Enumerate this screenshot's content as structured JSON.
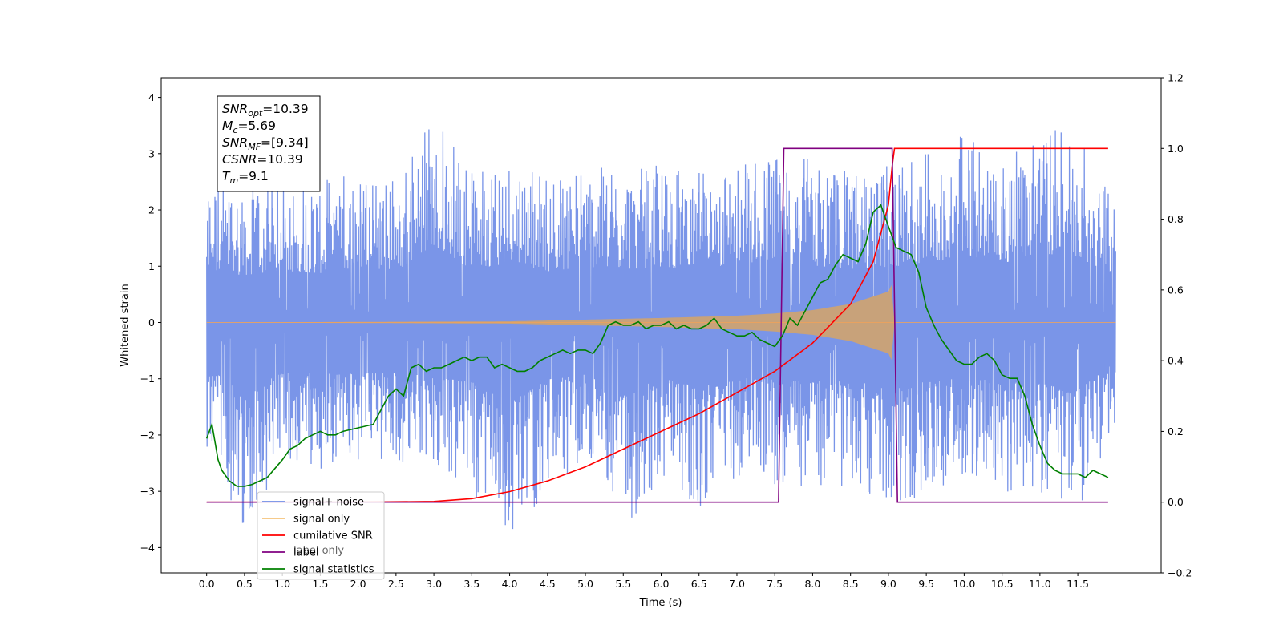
{
  "chart_data": {
    "type": "line",
    "xlabel": "Time (s)",
    "ylabel_left": "Whitened strain",
    "xlim": [
      -0.6,
      12.6
    ],
    "ylim_left": [
      -4.45,
      4.35
    ],
    "ylim_right": [
      -0.2,
      1.2
    ],
    "x_ticks": [
      0.0,
      0.5,
      1.0,
      1.5,
      2.0,
      2.5,
      3.0,
      3.5,
      4.0,
      4.5,
      5.0,
      5.5,
      6.0,
      6.5,
      7.0,
      7.5,
      8.0,
      8.5,
      9.0,
      9.5,
      10.0,
      10.5,
      11.0,
      11.5
    ],
    "x_tick_labels": [
      "0.0",
      "0.5",
      "1.0",
      "1.5",
      "2.0",
      "2.5",
      "3.0",
      "3.5",
      "4.0",
      "4.5",
      "5.0",
      "5.5",
      "6.0",
      "6.5",
      "7.0",
      "7.5",
      "8.0",
      "8.5",
      "9.0",
      "9.5",
      "10.0",
      "10.5",
      "11.0",
      "11.5"
    ],
    "y_left_ticks": [
      -4,
      -3,
      -2,
      -1,
      0,
      1,
      2,
      3,
      4
    ],
    "y_left_tick_labels": [
      "−4",
      "−3",
      "−2",
      "−1",
      "0",
      "1",
      "2",
      "3",
      "4"
    ],
    "y_right_ticks": [
      -0.2,
      0.0,
      0.2,
      0.4,
      0.6,
      0.8,
      1.0,
      1.2
    ],
    "y_right_tick_labels": [
      "−0.2",
      "0.0",
      "0.2",
      "0.4",
      "0.6",
      "0.8",
      "1.0",
      "1.2"
    ],
    "legend_position": "lower-left",
    "annotation": [
      {
        "base": "SNR",
        "sub": "opt",
        "value": "=10.39"
      },
      {
        "base": "M",
        "sub": "c",
        "value": "=5.69"
      },
      {
        "base": "SNR",
        "sub": "MF",
        "value": "=[9.34]"
      },
      {
        "base": "CSNR",
        "sub": "",
        "value": "=10.39"
      },
      {
        "base": "T",
        "sub": "m",
        "value": "=9.1"
      }
    ],
    "series": [
      {
        "name": "signal+ noise",
        "axis": "left",
        "color": "#6f8ce6",
        "envelope": {
          "x": [
            0,
            0.5,
            1,
            1.5,
            2,
            2.5,
            3,
            3.5,
            4,
            4.5,
            5,
            5.5,
            6,
            6.5,
            7,
            7.5,
            8,
            8.5,
            9,
            9.5,
            10,
            10.5,
            11,
            11.5,
            12
          ],
          "upper": [
            2.6,
            2.4,
            2.6,
            2.5,
            2.8,
            2.6,
            3.8,
            2.7,
            3.0,
            2.6,
            2.8,
            2.7,
            2.8,
            2.7,
            2.9,
            3.0,
            2.9,
            2.7,
            2.8,
            3.0,
            3.4,
            3.0,
            3.5,
            3.3,
            2.4
          ],
          "lower": [
            -2.2,
            -3.7,
            -2.5,
            -2.6,
            -2.6,
            -2.5,
            -2.8,
            -3.0,
            -4.1,
            -2.9,
            -2.6,
            -3.7,
            -2.8,
            -3.3,
            -2.8,
            -2.9,
            -3.0,
            -2.9,
            -3.4,
            -3.0,
            -2.8,
            -3.0,
            -3.1,
            -3.4,
            -2.0
          ]
        }
      },
      {
        "name": "signal only",
        "axis": "left",
        "color": "#c8a27a",
        "amplitude": {
          "x": [
            0,
            4,
            5,
            6,
            7,
            7.5,
            8,
            8.5,
            9,
            9.07,
            9.08,
            12
          ],
          "y": [
            0.0,
            0.02,
            0.05,
            0.08,
            0.12,
            0.16,
            0.22,
            0.33,
            0.55,
            0.75,
            0.0,
            0.0
          ]
        }
      },
      {
        "name": "cumilative SNR",
        "axis": "right",
        "color": "#ff0000",
        "x": [
          0,
          2,
          3,
          3.5,
          4,
          4.5,
          5,
          5.5,
          6,
          6.5,
          7,
          7.5,
          8,
          8.5,
          8.8,
          9.0,
          9.05,
          9.08,
          9.1,
          11.5,
          11.9
        ],
        "y": [
          0.0,
          0.0,
          0.002,
          0.01,
          0.03,
          0.06,
          0.1,
          0.15,
          0.2,
          0.25,
          0.31,
          0.37,
          0.45,
          0.56,
          0.68,
          0.84,
          0.95,
          1.0,
          1.0,
          1.0,
          1.0
        ]
      },
      {
        "name": "label",
        "axis": "right",
        "color": "#800080",
        "x": [
          0,
          7.55,
          7.62,
          9.05,
          9.12,
          11.9
        ],
        "y": [
          0,
          0,
          1,
          1,
          0,
          0
        ]
      },
      {
        "name": "signal statistics",
        "axis": "right",
        "color": "#008000",
        "x": [
          0,
          0.07,
          0.15,
          0.2,
          0.3,
          0.4,
          0.5,
          0.6,
          0.8,
          1.0,
          1.1,
          1.2,
          1.3,
          1.4,
          1.5,
          1.6,
          1.7,
          1.8,
          2.0,
          2.2,
          2.4,
          2.5,
          2.55,
          2.6,
          2.7,
          2.8,
          2.9,
          3.0,
          3.1,
          3.2,
          3.3,
          3.4,
          3.5,
          3.6,
          3.7,
          3.8,
          3.9,
          4.0,
          4.1,
          4.2,
          4.3,
          4.4,
          4.5,
          4.6,
          4.7,
          4.8,
          4.9,
          5.0,
          5.1,
          5.2,
          5.3,
          5.4,
          5.5,
          5.6,
          5.7,
          5.8,
          5.9,
          6.0,
          6.1,
          6.2,
          6.3,
          6.4,
          6.5,
          6.6,
          6.7,
          6.8,
          6.9,
          7.0,
          7.1,
          7.2,
          7.3,
          7.4,
          7.5,
          7.6,
          7.7,
          7.8,
          7.9,
          8.0,
          8.1,
          8.2,
          8.3,
          8.4,
          8.5,
          8.6,
          8.7,
          8.8,
          8.9,
          9.0,
          9.1,
          9.2,
          9.3,
          9.4,
          9.5,
          9.6,
          9.7,
          9.8,
          9.9,
          10.0,
          10.1,
          10.2,
          10.3,
          10.4,
          10.5,
          10.6,
          10.7,
          10.8,
          10.9,
          11.0,
          11.1,
          11.2,
          11.3,
          11.4,
          11.5,
          11.6,
          11.7,
          11.8,
          11.9
        ],
        "y": [
          0.18,
          0.22,
          0.12,
          0.09,
          0.06,
          0.045,
          0.045,
          0.05,
          0.07,
          0.12,
          0.15,
          0.16,
          0.18,
          0.19,
          0.2,
          0.19,
          0.19,
          0.2,
          0.21,
          0.22,
          0.3,
          0.32,
          0.31,
          0.3,
          0.38,
          0.39,
          0.37,
          0.38,
          0.38,
          0.39,
          0.4,
          0.41,
          0.4,
          0.41,
          0.41,
          0.38,
          0.39,
          0.38,
          0.37,
          0.37,
          0.38,
          0.4,
          0.41,
          0.42,
          0.43,
          0.42,
          0.43,
          0.43,
          0.42,
          0.45,
          0.5,
          0.51,
          0.5,
          0.5,
          0.51,
          0.49,
          0.5,
          0.5,
          0.51,
          0.49,
          0.5,
          0.49,
          0.49,
          0.5,
          0.52,
          0.49,
          0.48,
          0.47,
          0.47,
          0.48,
          0.46,
          0.45,
          0.44,
          0.47,
          0.52,
          0.5,
          0.54,
          0.58,
          0.62,
          0.63,
          0.67,
          0.7,
          0.69,
          0.68,
          0.73,
          0.82,
          0.84,
          0.78,
          0.72,
          0.71,
          0.7,
          0.65,
          0.55,
          0.5,
          0.46,
          0.43,
          0.4,
          0.39,
          0.39,
          0.41,
          0.42,
          0.4,
          0.36,
          0.35,
          0.35,
          0.3,
          0.22,
          0.16,
          0.11,
          0.09,
          0.08,
          0.08,
          0.08,
          0.07,
          0.09,
          0.08,
          0.07
        ]
      }
    ]
  },
  "legend": {
    "entries": [
      "signal+ noise",
      "signal only",
      "cumilative SNR",
      "label",
      "signal statistics"
    ],
    "ghost_entries": [
      "label only",
      "label"
    ]
  }
}
